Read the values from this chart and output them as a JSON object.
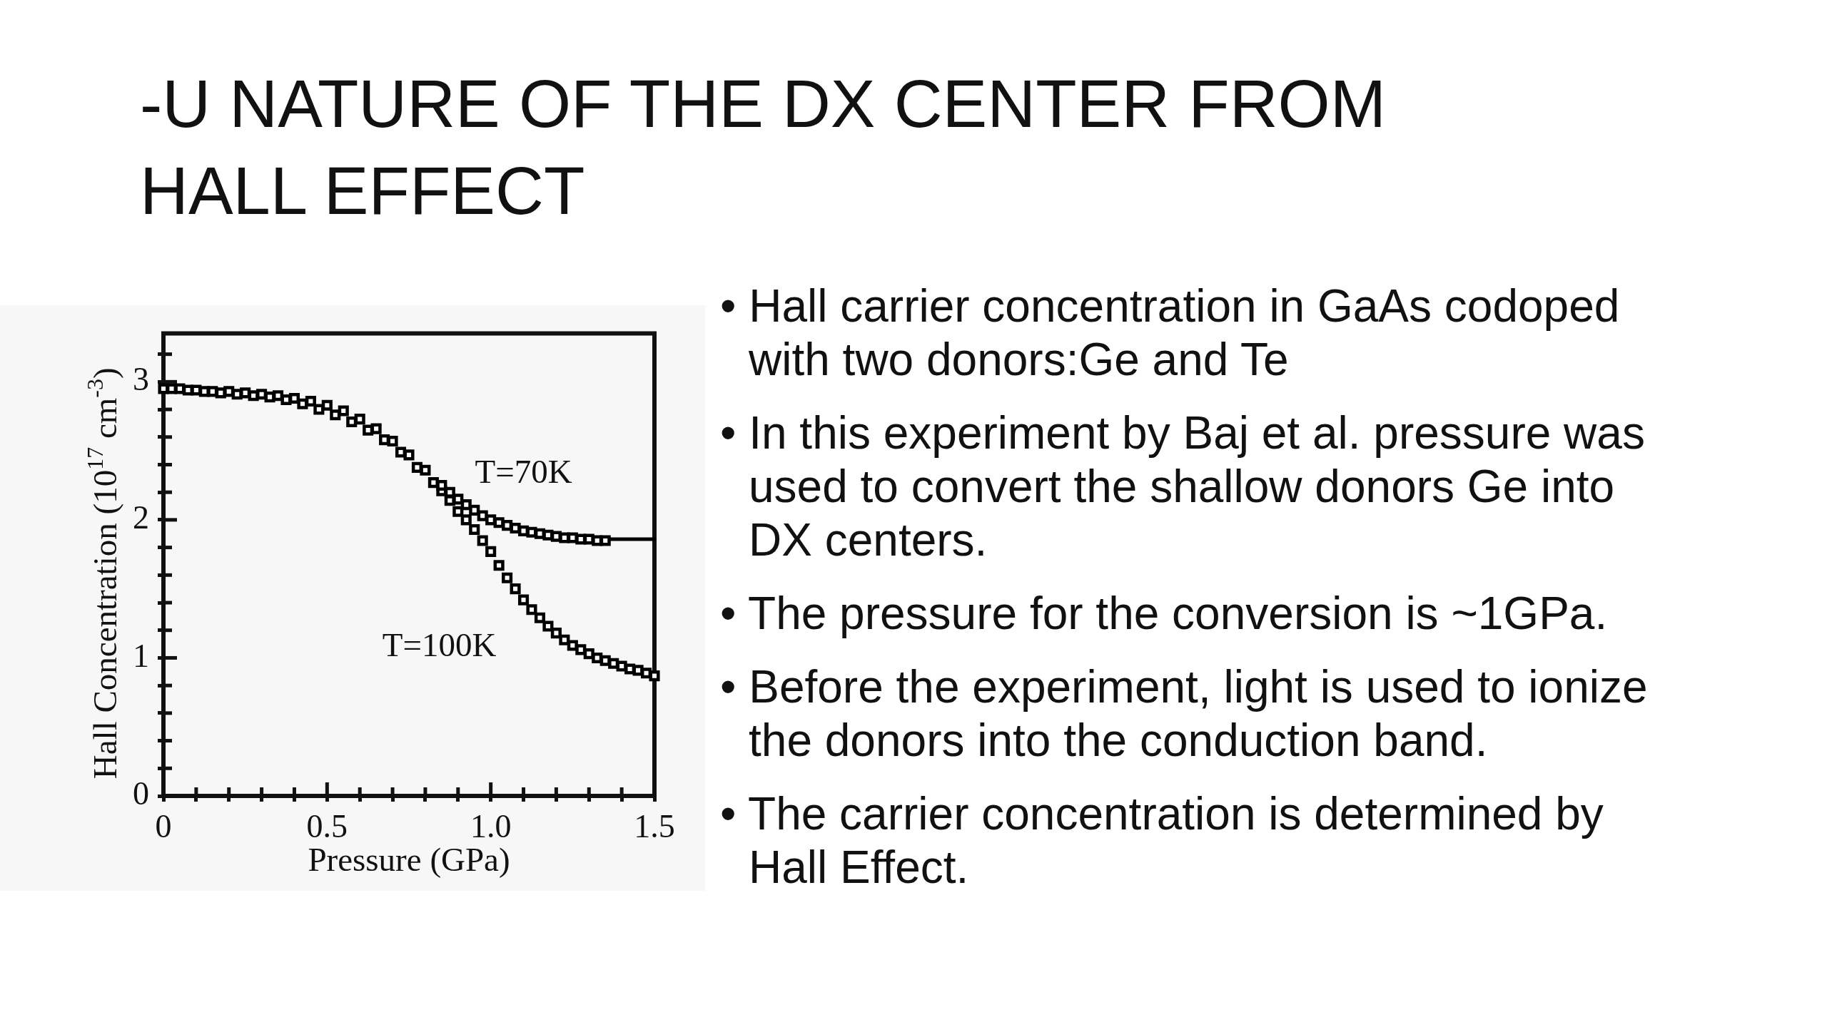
{
  "chart_data": {
    "type": "scatter",
    "title": "-U NATURE OF THE DX CENTER FROM HALL EFFECT",
    "xlabel": "Pressure (GPa)",
    "ylabel": "Hall Concentration (10$^{17}$ cm$^{-3}$)",
    "xlim": [
      0,
      1.5
    ],
    "ylim": [
      0,
      3.35
    ],
    "xticks": [
      0,
      {
        "value": 0.1,
        "label": null
      },
      {
        "value": 0.2,
        "label": null
      },
      {
        "value": 0.3,
        "label": null
      },
      {
        "value": 0.4,
        "label": null
      },
      0.5,
      {
        "value": 0.6,
        "label": null
      },
      {
        "value": 0.7,
        "label": null
      },
      {
        "value": 0.8,
        "label": null
      },
      {
        "value": 0.9,
        "label": null
      },
      {
        "value": 1,
        "label": "1.0"
      },
      {
        "value": 1.1,
        "label": null
      },
      {
        "value": 1.2,
        "label": null
      },
      {
        "value": 1.3,
        "label": null
      },
      {
        "value": 1.4,
        "label": null
      },
      1.5
    ],
    "yticks": [
      0,
      {
        "value": 0.2,
        "label": null
      },
      {
        "value": 0.4,
        "label": null
      },
      {
        "value": 0.6,
        "label": null
      },
      {
        "value": 0.8,
        "label": null
      },
      1,
      {
        "value": 1.2,
        "label": null
      },
      {
        "value": 1.4,
        "label": null
      },
      {
        "value": 1.6,
        "label": null
      },
      {
        "value": 1.8,
        "label": null
      },
      2,
      {
        "value": 2.2,
        "label": null
      },
      {
        "value": 2.4,
        "label": null
      },
      {
        "value": 2.6,
        "label": null
      },
      {
        "value": 2.8,
        "label": null
      },
      3,
      {
        "value": 3.2,
        "label": null
      }
    ],
    "marker": "square",
    "series": [
      {
        "name": "T=70K",
        "color": "#000000",
        "x": [
          0,
          0.05,
          0.1,
          0.15,
          0.2,
          0.25,
          0.3,
          0.35,
          0.4,
          0.45,
          0.5,
          0.55,
          0.6,
          0.65,
          0.7,
          0.75,
          0.8,
          0.85,
          0.875,
          0.9,
          0.925,
          0.95,
          0.975,
          1.0,
          1.025,
          1.05,
          1.075,
          1.1,
          1.125,
          1.15,
          1.175,
          1.2,
          1.225,
          1.25,
          1.275,
          1.3,
          1.325,
          1.35
        ],
        "values": [
          2.95,
          2.95,
          2.94,
          2.93,
          2.93,
          2.92,
          2.91,
          2.9,
          2.88,
          2.86,
          2.83,
          2.79,
          2.73,
          2.66,
          2.57,
          2.47,
          2.36,
          2.25,
          2.2,
          2.15,
          2.11,
          2.07,
          2.03,
          2.0,
          1.98,
          1.96,
          1.94,
          1.92,
          1.91,
          1.9,
          1.89,
          1.88,
          1.87,
          1.87,
          1.86,
          1.86,
          1.85,
          1.85
        ]
      },
      {
        "type": "line",
        "color": "#000000",
        "marker": "none",
        "x": [
          1.35,
          1.5
        ],
        "values": [
          1.86,
          1.86
        ]
      },
      {
        "name": "T=100K",
        "color": "#000000",
        "x": [
          0.025,
          0.075,
          0.125,
          0.175,
          0.225,
          0.275,
          0.325,
          0.375,
          0.425,
          0.475,
          0.525,
          0.575,
          0.625,
          0.675,
          0.725,
          0.775,
          0.825,
          0.85,
          0.875,
          0.9,
          0.925,
          0.95,
          0.975,
          1.0,
          1.025,
          1.05,
          1.075,
          1.1,
          1.125,
          1.15,
          1.175,
          1.2,
          1.225,
          1.25,
          1.275,
          1.3,
          1.325,
          1.35,
          1.375,
          1.4,
          1.425,
          1.45,
          1.475,
          1.5
        ],
        "values": [
          2.95,
          2.94,
          2.93,
          2.92,
          2.91,
          2.9,
          2.89,
          2.87,
          2.84,
          2.8,
          2.76,
          2.71,
          2.65,
          2.58,
          2.49,
          2.38,
          2.27,
          2.21,
          2.14,
          2.06,
          2.0,
          1.93,
          1.85,
          1.77,
          1.67,
          1.58,
          1.5,
          1.42,
          1.35,
          1.29,
          1.23,
          1.18,
          1.13,
          1.09,
          1.06,
          1.03,
          1.0,
          0.98,
          0.96,
          0.94,
          0.92,
          0.91,
          0.89,
          0.87
        ]
      }
    ],
    "annotations": [
      "• Hall carrier concentration in GaAs codoped with two donors:Ge and Te",
      "• In this experiment by Baj et al. pressure was used to convert the shallow donors Ge into DX centers.",
      "• The pressure for the conversion is ~1GPa.",
      "• Before the experiment, light is used to ionize the donors into the conduction band.",
      "• The carrier concentration is determined by Hall Effect."
    ]
  }
}
